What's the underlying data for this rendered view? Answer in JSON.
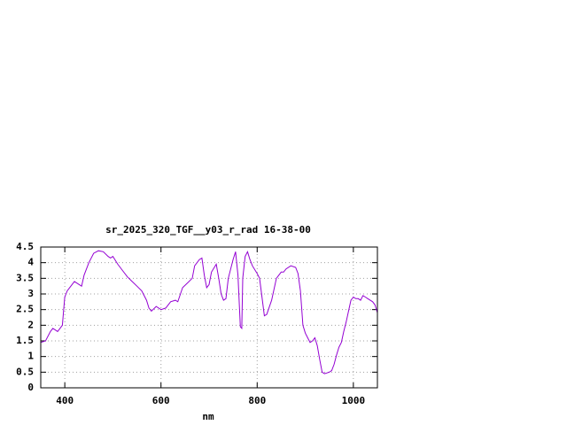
{
  "chart_data": {
    "type": "line",
    "title": "sr_2025_320_TGF__y03_r_rad 16-38-00",
    "xlabel": "nm",
    "xlim": [
      350,
      1050
    ],
    "xticks": [
      400,
      600,
      800,
      1000
    ],
    "ylim": [
      0,
      4.5
    ],
    "yticks": [
      0,
      0.5,
      1,
      1.5,
      2,
      2.5,
      3,
      3.5,
      4,
      4.5
    ],
    "grid": true,
    "series": [
      {
        "color": "#9400d3",
        "x": [
          350,
          360,
          370,
          375,
          380,
          385,
          390,
          395,
          400,
          405,
          410,
          420,
          430,
          435,
          440,
          450,
          460,
          470,
          480,
          490,
          495,
          500,
          510,
          520,
          530,
          540,
          550,
          560,
          570,
          575,
          580,
          590,
          600,
          610,
          620,
          630,
          635,
          645,
          655,
          665,
          670,
          680,
          685,
          690,
          695,
          700,
          705,
          715,
          720,
          725,
          730,
          735,
          740,
          750,
          755,
          760,
          765,
          768,
          770,
          775,
          780,
          785,
          790,
          800,
          805,
          810,
          815,
          820,
          830,
          840,
          850,
          855,
          860,
          870,
          880,
          885,
          890,
          895,
          900,
          905,
          910,
          915,
          920,
          925,
          930,
          935,
          940,
          950,
          955,
          960,
          965,
          970,
          975,
          980,
          985,
          990,
          995,
          1000,
          1005,
          1010,
          1015,
          1020,
          1025,
          1030,
          1040,
          1045,
          1050
        ],
        "values": [
          1.45,
          1.5,
          1.8,
          1.9,
          1.85,
          1.8,
          1.9,
          2.0,
          2.9,
          3.1,
          3.2,
          3.4,
          3.3,
          3.25,
          3.6,
          4.0,
          4.3,
          4.38,
          4.35,
          4.2,
          4.15,
          4.2,
          3.95,
          3.75,
          3.55,
          3.4,
          3.25,
          3.1,
          2.8,
          2.55,
          2.45,
          2.6,
          2.5,
          2.55,
          2.75,
          2.8,
          2.75,
          3.2,
          3.35,
          3.5,
          3.9,
          4.1,
          4.15,
          3.6,
          3.2,
          3.3,
          3.7,
          3.95,
          3.5,
          3.0,
          2.8,
          2.85,
          3.5,
          4.1,
          4.35,
          3.6,
          1.95,
          1.9,
          3.5,
          4.2,
          4.35,
          4.1,
          3.9,
          3.65,
          3.5,
          2.9,
          2.3,
          2.35,
          2.8,
          3.5,
          3.7,
          3.7,
          3.8,
          3.9,
          3.85,
          3.65,
          3.1,
          2.0,
          1.75,
          1.6,
          1.45,
          1.5,
          1.6,
          1.35,
          0.9,
          0.5,
          0.45,
          0.5,
          0.55,
          0.75,
          1.05,
          1.3,
          1.45,
          1.8,
          2.1,
          2.45,
          2.8,
          2.9,
          2.85,
          2.85,
          2.8,
          2.95,
          2.9,
          2.85,
          2.75,
          2.65,
          2.4
        ]
      }
    ]
  }
}
